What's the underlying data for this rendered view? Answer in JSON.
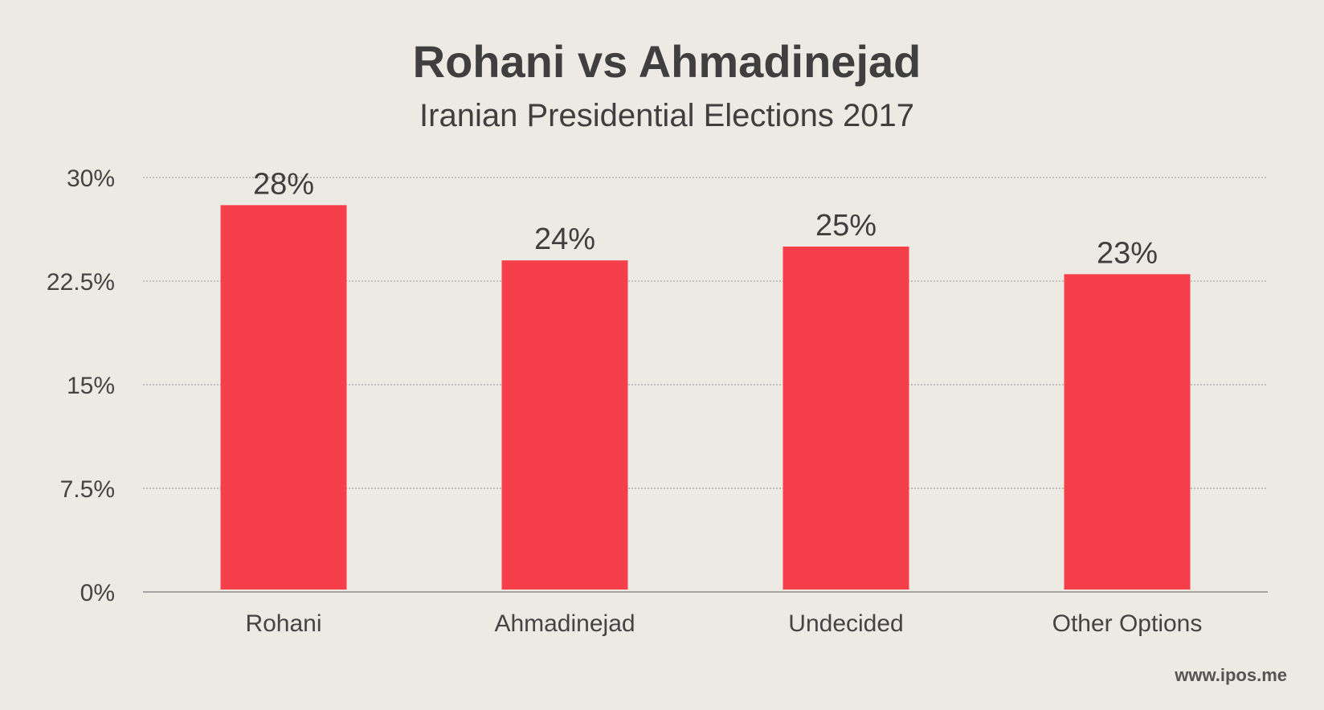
{
  "colors": {
    "background": "#edeae4",
    "bar": "#f53f4a",
    "text": "#3f3f3f",
    "grid": "#a8a8a8"
  },
  "chart_data": {
    "type": "bar",
    "title": "Rohani vs Ahmadinejad",
    "subtitle": "Iranian Presidential Elections 2017",
    "categories": [
      "Rohani",
      "Ahmadinejad",
      "Undecided",
      "Other Options"
    ],
    "values": [
      28,
      24,
      25,
      23
    ],
    "data_labels": [
      "28%",
      "24%",
      "25%",
      "23%"
    ],
    "unit": "%",
    "ylim": [
      0,
      30
    ],
    "yticks": [
      0,
      7.5,
      15,
      22.5,
      30
    ],
    "ytick_labels": [
      "0%",
      "7.5%",
      "15%",
      "22.5%",
      "30%"
    ],
    "grid": true,
    "legend": false
  },
  "footer": {
    "watermark": "www.ipos.me"
  }
}
